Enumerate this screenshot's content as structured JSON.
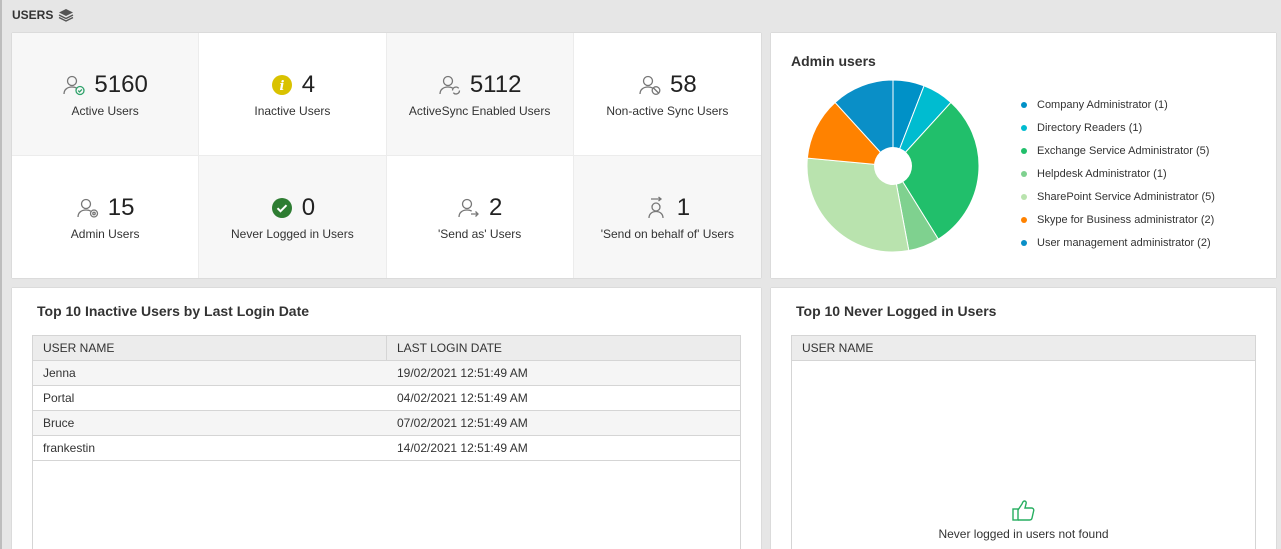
{
  "section": {
    "title": "USERS"
  },
  "stats": [
    {
      "value": "5160",
      "label": "Active Users",
      "icon": "user-check-icon"
    },
    {
      "value": "4",
      "label": "Inactive Users",
      "icon": "info-icon"
    },
    {
      "value": "5112",
      "label": "ActiveSync Enabled Users",
      "icon": "user-sync-icon"
    },
    {
      "value": "58",
      "label": "Non-active Sync Users",
      "icon": "user-sync-off-icon"
    },
    {
      "value": "15",
      "label": "Admin Users",
      "icon": "user-gear-icon"
    },
    {
      "value": "0",
      "label": "Never Logged in Users",
      "icon": "check-circle-icon"
    },
    {
      "value": "2",
      "label": "'Send as' Users",
      "icon": "user-send-icon"
    },
    {
      "value": "1",
      "label": "'Send on behalf of' Users",
      "icon": "user-forward-icon"
    }
  ],
  "admin_chart": {
    "title": "Admin users",
    "legend": [
      {
        "label": "Company Administrator (1)",
        "color": "#0091c7"
      },
      {
        "label": "Directory Readers (1)",
        "color": "#00bcd0"
      },
      {
        "label": "Exchange Service Administrator (5)",
        "color": "#21bf6b"
      },
      {
        "label": "Helpdesk Administrator (1)",
        "color": "#7fd18f"
      },
      {
        "label": "SharePoint Service Administrator (5)",
        "color": "#b9e3ae"
      },
      {
        "label": "Skype for Business administrator (2)",
        "color": "#ff8200"
      },
      {
        "label": "User management administrator (2)",
        "color": "#0a8fc7"
      }
    ]
  },
  "chart_data": {
    "type": "pie",
    "title": "Admin users",
    "categories": [
      "Company Administrator",
      "Directory Readers",
      "Exchange Service Administrator",
      "Helpdesk Administrator",
      "SharePoint Service Administrator",
      "Skype for Business administrator",
      "User management administrator"
    ],
    "values": [
      1,
      1,
      5,
      1,
      5,
      2,
      2
    ],
    "colors": [
      "#0091c7",
      "#00bcd0",
      "#21bf6b",
      "#7fd18f",
      "#b9e3ae",
      "#ff8200",
      "#0a8fc7"
    ],
    "legend_position": "right"
  },
  "inactive_table": {
    "title": "Top 10 Inactive Users by Last Login Date",
    "columns": [
      "USER NAME",
      "LAST LOGIN DATE"
    ],
    "rows": [
      [
        "Jenna",
        "19/02/2021 12:51:49 AM"
      ],
      [
        "Portal",
        "04/02/2021 12:51:49 AM"
      ],
      [
        "Bruce",
        "07/02/2021 12:51:49 AM"
      ],
      [
        "frankestin",
        "14/02/2021 12:51:49 AM"
      ]
    ]
  },
  "never_table": {
    "title": "Top 10 Never Logged in Users",
    "columns": [
      "USER NAME"
    ],
    "empty_text": "Never logged in users not found",
    "empty_icon": "thumbs-up-icon"
  }
}
